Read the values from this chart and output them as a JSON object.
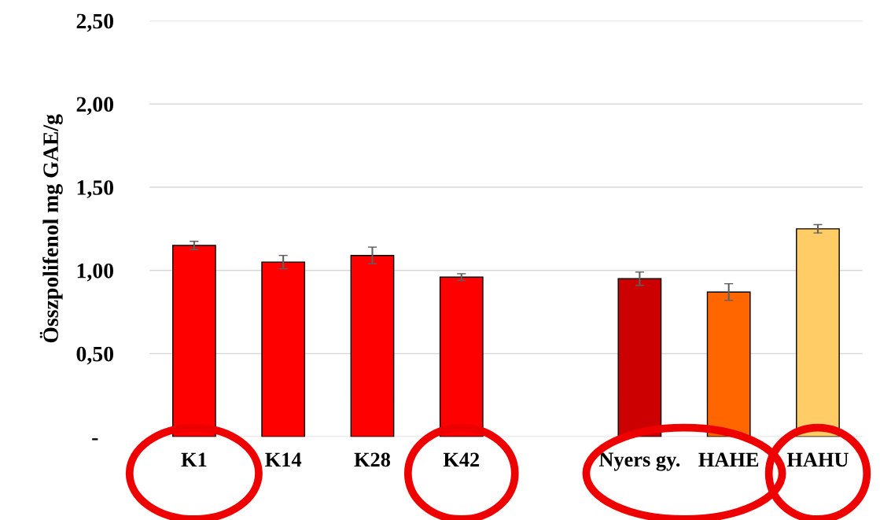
{
  "chart_data": {
    "type": "bar",
    "ylabel": "Összpolifenol mg GAE/g",
    "categories": [
      "K1",
      "K14",
      "K28",
      "K42",
      null,
      "Nyers gy.",
      "HAHE",
      "HAHU"
    ],
    "values": [
      1.15,
      1.05,
      1.09,
      0.96,
      null,
      0.95,
      0.87,
      1.25
    ],
    "errors": [
      0.025,
      0.04,
      0.05,
      0.02,
      null,
      0.04,
      0.05,
      0.025
    ],
    "colors": [
      "#ff0000",
      "#ff0000",
      "#ff0000",
      "#ff0000",
      "#ff0000",
      "#cc0000",
      "#ff6600",
      "#ffcc66"
    ],
    "ylim": [
      0,
      2.5
    ],
    "yticks": [
      {
        "value": 0,
        "label": "-"
      },
      {
        "value": 0.5,
        "label": "0,50"
      },
      {
        "value": 1,
        "label": "1,00"
      },
      {
        "value": 1.5,
        "label": "1,50"
      },
      {
        "value": 2,
        "label": "2,00"
      },
      {
        "value": 2.5,
        "label": "2,50"
      }
    ],
    "grid": "y",
    "legend": false
  }
}
